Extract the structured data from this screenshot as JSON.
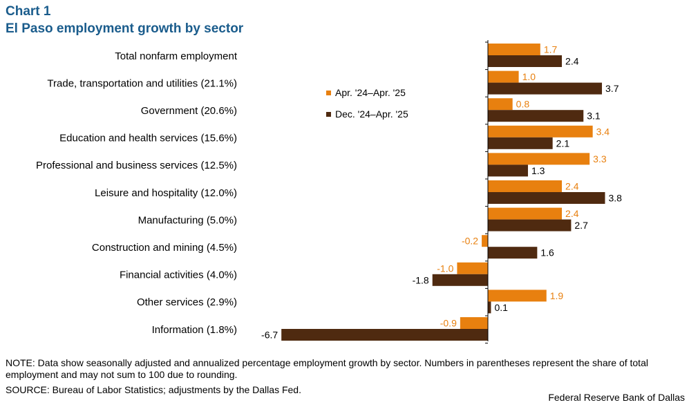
{
  "header": {
    "chart_label": "Chart 1",
    "title": "El Paso employment growth by sector"
  },
  "colors": {
    "series1": "#e8800f",
    "series2": "#4f2a10",
    "title": "#1a5c8c",
    "axis": "#000000"
  },
  "chart_data": {
    "type": "bar",
    "orientation": "horizontal",
    "categories": [
      "Total nonfarm employment",
      "Trade, transportation and utilities (21.1%)",
      "Government (20.6%)",
      "Education and health services (15.6%)",
      "Professional and business services (12.5%)",
      "Leisure and hospitality (12.0%)",
      "Manufacturing (5.0%)",
      "Construction and mining (4.5%)",
      "Financial activities (4.0%)",
      "Other services (2.9%)",
      "Information (1.8%)"
    ],
    "series": [
      {
        "name": "Apr. '24–Apr. '25",
        "values": [
          1.7,
          1.0,
          0.8,
          3.4,
          3.3,
          2.4,
          2.4,
          -0.2,
          -1.0,
          1.9,
          -0.9
        ],
        "labels": [
          "1.7",
          "1.0",
          "0.8",
          "3.4",
          "3.3",
          "2.4",
          "2.4",
          "-0.2",
          "-1.0",
          "1.9",
          "-0.9"
        ]
      },
      {
        "name": "Dec. '24–Apr. '25",
        "values": [
          2.4,
          3.7,
          3.1,
          2.1,
          1.3,
          3.8,
          2.7,
          1.6,
          -1.8,
          0.1,
          -6.7
        ],
        "labels": [
          "2.4",
          "3.7",
          "3.1",
          "2.1",
          "1.3",
          "3.8",
          "2.7",
          "1.6",
          "-1.8",
          "0.1",
          "-6.7"
        ]
      }
    ],
    "xlim": [
      -6.7,
      3.8
    ],
    "legend_position": "upper-middle",
    "grid": false,
    "title": "El Paso employment growth by sector",
    "xlabel": "",
    "ylabel": ""
  },
  "notes": {
    "note": "NOTE: Data show seasonally adjusted and annualized percentage employment growth by sector. Numbers in parentheses represent the share of total employment and may not sum to 100 due to rounding.",
    "source": "SOURCE: Bureau of Labor Statistics; adjustments by the Dallas Fed.",
    "footer": "Federal Reserve Bank of Dallas"
  }
}
